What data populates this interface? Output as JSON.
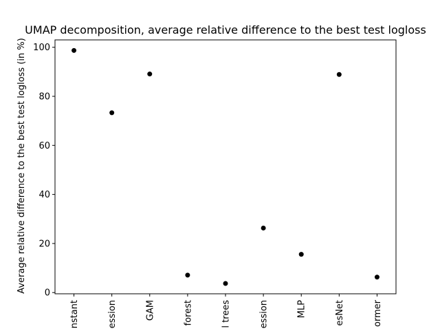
{
  "chart_data": {
    "type": "scatter",
    "title": "UMAP decomposition, average relative difference to the best test logloss",
    "xlabel": "",
    "ylabel": "Average relative difference to the best test logloss (in %)",
    "categories": [
      "nstant",
      "ession",
      "GAM",
      "forest",
      "l trees",
      "ession",
      "MLP",
      "esNet",
      "ormer"
    ],
    "values": [
      98.7,
      73.3,
      89.1,
      7.1,
      3.7,
      26.3,
      15.6,
      88.9,
      6.3
    ],
    "ylim": [
      -0.5,
      103
    ],
    "yticks": [
      0,
      20,
      40,
      60,
      80,
      100
    ],
    "marker_color": "#000000",
    "grid": false,
    "legend": "none"
  }
}
